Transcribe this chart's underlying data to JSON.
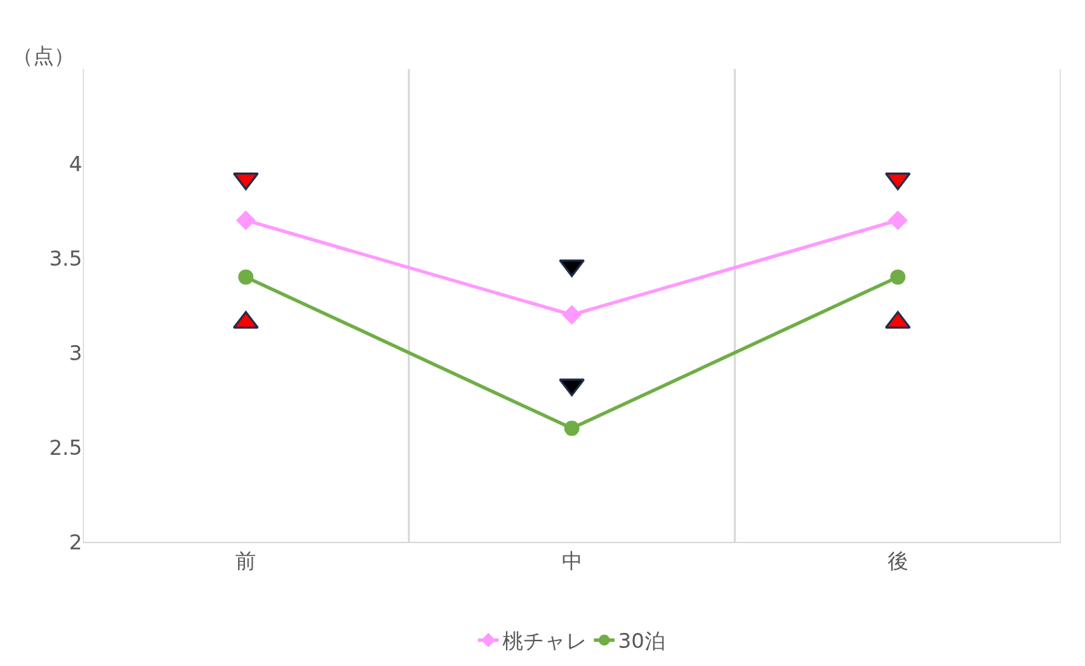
{
  "chart_data": {
    "type": "line",
    "ylabel": "（点）",
    "categories": [
      "前",
      "中",
      "後"
    ],
    "series": [
      {
        "name": "桃チャレ",
        "color": "#ff99ff",
        "marker": "diamond",
        "values": [
          3.7,
          3.2,
          3.7
        ]
      },
      {
        "name": "30泊",
        "color": "#70ad47",
        "marker": "circle",
        "values": [
          3.4,
          2.6,
          3.4
        ]
      },
      {
        "type": "scatter",
        "marker": "triangle-down",
        "colors": [
          "#ff0000",
          "#000000",
          "#ff0000"
        ],
        "values": [
          3.92,
          3.46,
          3.92
        ]
      },
      {
        "type": "scatter",
        "marker": "triangle-down",
        "color": "#000000",
        "values": [
          null,
          2.83,
          null
        ]
      },
      {
        "type": "scatter",
        "marker": "triangle",
        "color": "#ff0000",
        "values": [
          3.16,
          null,
          3.16
        ]
      }
    ],
    "ylim": [
      2,
      4.5
    ],
    "yticks": [
      2,
      2.5,
      3,
      3.5,
      4
    ],
    "grid": "x",
    "legend": "bottom",
    "line_style": "solid"
  }
}
